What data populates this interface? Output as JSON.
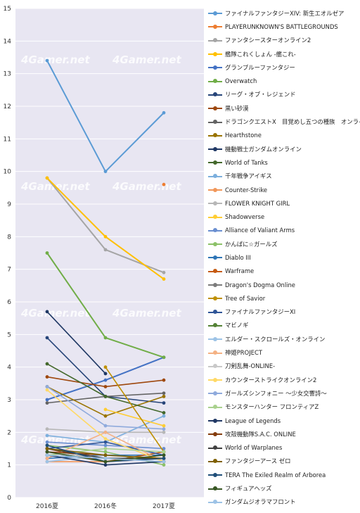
{
  "chart_data": {
    "type": "line",
    "categories": [
      "2016夏",
      "2016冬",
      "2017夏"
    ],
    "ylim": [
      0,
      15
    ],
    "yticks": [
      0,
      1,
      2,
      3,
      4,
      5,
      6,
      7,
      8,
      9,
      10,
      11,
      12,
      13,
      14,
      15
    ],
    "grid": true,
    "legend_position": "right",
    "watermark": "4Gamer.net",
    "series": [
      {
        "name": "ファイナルファンタジーXIV: 新生エオルゼア",
        "color": "#5b9bd5",
        "values": [
          13.4,
          10.0,
          11.8
        ]
      },
      {
        "name": "PLAYERUNKNOWN'S BATTLEGROUNDS",
        "color": "#ed7d31",
        "values": [
          null,
          null,
          9.6
        ]
      },
      {
        "name": "ファンタシースターオンライン2",
        "color": "#a5a5a5",
        "values": [
          9.8,
          7.6,
          6.9
        ]
      },
      {
        "name": "艦隊これくしょん -艦これ-",
        "color": "#ffc000",
        "values": [
          9.8,
          8.0,
          6.7
        ]
      },
      {
        "name": "グランブルーファンタジー",
        "color": "#4472c4",
        "values": [
          3.0,
          3.6,
          4.3
        ]
      },
      {
        "name": "Overwatch",
        "color": "#70ad47",
        "values": [
          7.5,
          4.9,
          4.3
        ]
      },
      {
        "name": "リーグ・オブ・レジェンド",
        "color": "#264478",
        "values": [
          4.9,
          3.1,
          2.9
        ]
      },
      {
        "name": "黒い砂漠",
        "color": "#9e480e",
        "values": [
          3.7,
          3.4,
          3.6
        ]
      },
      {
        "name": "ドラゴンクエストX　目覚めし五つの種族　オンライン",
        "color": "#636363",
        "values": [
          2.9,
          3.1,
          3.2
        ]
      },
      {
        "name": "Hearthstone",
        "color": "#997300",
        "values": [
          3.4,
          2.5,
          3.1
        ]
      },
      {
        "name": "機動戦士ガンダムオンライン",
        "color": "#1f3864",
        "values": [
          5.7,
          3.8,
          null
        ]
      },
      {
        "name": "World of Tanks",
        "color": "#43682b",
        "values": [
          4.1,
          3.1,
          2.6
        ]
      },
      {
        "name": "千年戦争アイギス",
        "color": "#7cafdd",
        "values": [
          1.9,
          1.7,
          2.5
        ]
      },
      {
        "name": "Counter-Strike",
        "color": "#f1975a",
        "values": [
          1.1,
          1.1,
          1.2
        ]
      },
      {
        "name": "FLOWER KNIGHT GIRL",
        "color": "#b7b7b7",
        "values": [
          2.1,
          2.0,
          2.0
        ]
      },
      {
        "name": "Shadowverse",
        "color": "#ffcd33",
        "values": [
          null,
          2.7,
          2.2
        ]
      },
      {
        "name": "Alliance of Valiant Arms",
        "color": "#698ed0",
        "values": [
          1.7,
          1.6,
          1.5
        ]
      },
      {
        "name": "かんぱに☆ガールズ",
        "color": "#8cc168",
        "values": [
          1.6,
          1.4,
          1.0
        ]
      },
      {
        "name": "Diablo III",
        "color": "#2e75b6",
        "values": [
          1.2,
          1.3,
          1.3
        ]
      },
      {
        "name": "Warframe",
        "color": "#c55a11",
        "values": [
          1.5,
          1.1,
          1.4
        ]
      },
      {
        "name": "Dragon's Dogma Online",
        "color": "#7b7b7b",
        "values": [
          1.3,
          1.2,
          1.1
        ]
      },
      {
        "name": "Tree of Savior",
        "color": "#bf9000",
        "values": [
          null,
          4.0,
          1.4
        ]
      },
      {
        "name": "ファイナルファンタジーXI",
        "color": "#2f5597",
        "values": [
          1.5,
          1.7,
          1.3
        ]
      },
      {
        "name": "マビノギ",
        "color": "#548235",
        "values": [
          1.4,
          1.2,
          1.2
        ]
      },
      {
        "name": "エルダー・スクロールズ・オンライン",
        "color": "#9dc3e6",
        "values": [
          1.1,
          1.3,
          1.2
        ]
      },
      {
        "name": "神姫PROJECT",
        "color": "#f4b183",
        "values": [
          1.2,
          2.0,
          1.1
        ]
      },
      {
        "name": "刀剣乱舞-ONLINE-",
        "color": "#c9c9c9",
        "values": [
          1.4,
          1.2,
          1.1
        ]
      },
      {
        "name": "カウンターストライクオンライン2",
        "color": "#ffd966",
        "values": [
          3.3,
          1.8,
          1.1
        ]
      },
      {
        "name": "ガールズシンフォニー ～少女交響詩～",
        "color": "#8faadc",
        "values": [
          3.4,
          2.2,
          2.1
        ]
      },
      {
        "name": "モンスターハンター フロンティアZ",
        "color": "#a9d18e",
        "values": [
          1.3,
          1.5,
          1.4
        ]
      },
      {
        "name": "League of Legends",
        "color": "#203864",
        "values": [
          1.3,
          1.0,
          1.1
        ]
      },
      {
        "name": "攻殻機動隊S.A.C. ONLINE",
        "color": "#843c0c",
        "values": [
          1.4,
          1.3,
          null
        ]
      },
      {
        "name": "World of Warplanes",
        "color": "#404040",
        "values": [
          1.5,
          1.2,
          1.2
        ]
      },
      {
        "name": "ファンタジーアース ゼロ",
        "color": "#7f6000",
        "values": [
          1.5,
          1.3,
          1.2
        ]
      },
      {
        "name": "TERA The Exiled Realm of Arborea",
        "color": "#1f4e79",
        "values": [
          1.6,
          1.1,
          1.2
        ]
      },
      {
        "name": "フィギュアヘッズ",
        "color": "#375623",
        "values": [
          1.4,
          1.1,
          1.3
        ]
      },
      {
        "name": "ガンダムジオラマフロント",
        "color": "#9dc3e6",
        "values": [
          1.3,
          1.2,
          1.1
        ]
      }
    ]
  }
}
